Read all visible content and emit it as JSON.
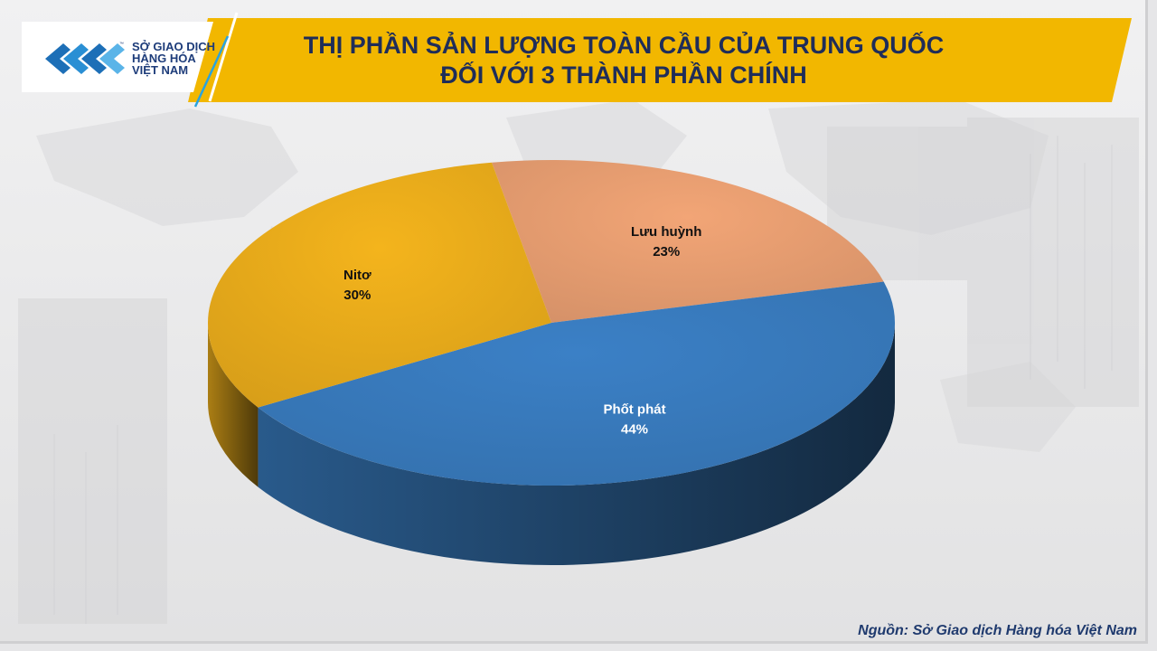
{
  "header": {
    "title_line1": "THỊ PHẦN SẢN LƯỢNG TOÀN CẦU CỦA TRUNG QUỐC",
    "title_line2": "ĐỐI VỚI 3 THÀNH PHẦN CHÍNH",
    "banner_color": "#f2b700"
  },
  "logo": {
    "line1": "SỞ GIAO DỊCH",
    "line2": "HÀNG HÓA",
    "line3": "VIỆT NAM",
    "tm": "™",
    "color": "#1d3c7a",
    "icon": "exchange-logo-icon"
  },
  "chart_data": {
    "type": "pie",
    "style": "3d-tilted",
    "title": "THỊ PHẦN SẢN LƯỢNG TOÀN CẦU CỦA TRUNG QUỐC ĐỐI VỚI 3 THÀNH PHẦN CHÍNH",
    "unit": "%",
    "slices": [
      {
        "label": "Lưu huỳnh",
        "value": 23,
        "value_label": "23%",
        "color": "#f2a576"
      },
      {
        "label": "Phốt phát",
        "value": 44,
        "value_label": "44%",
        "color": "#3b80c6"
      },
      {
        "label": "Nitơ",
        "value": 30,
        "value_label": "30%",
        "color": "#f4b41c"
      }
    ]
  },
  "footer": {
    "source": "Nguồn: Sở Giao dịch Hàng hóa Việt Nam"
  }
}
